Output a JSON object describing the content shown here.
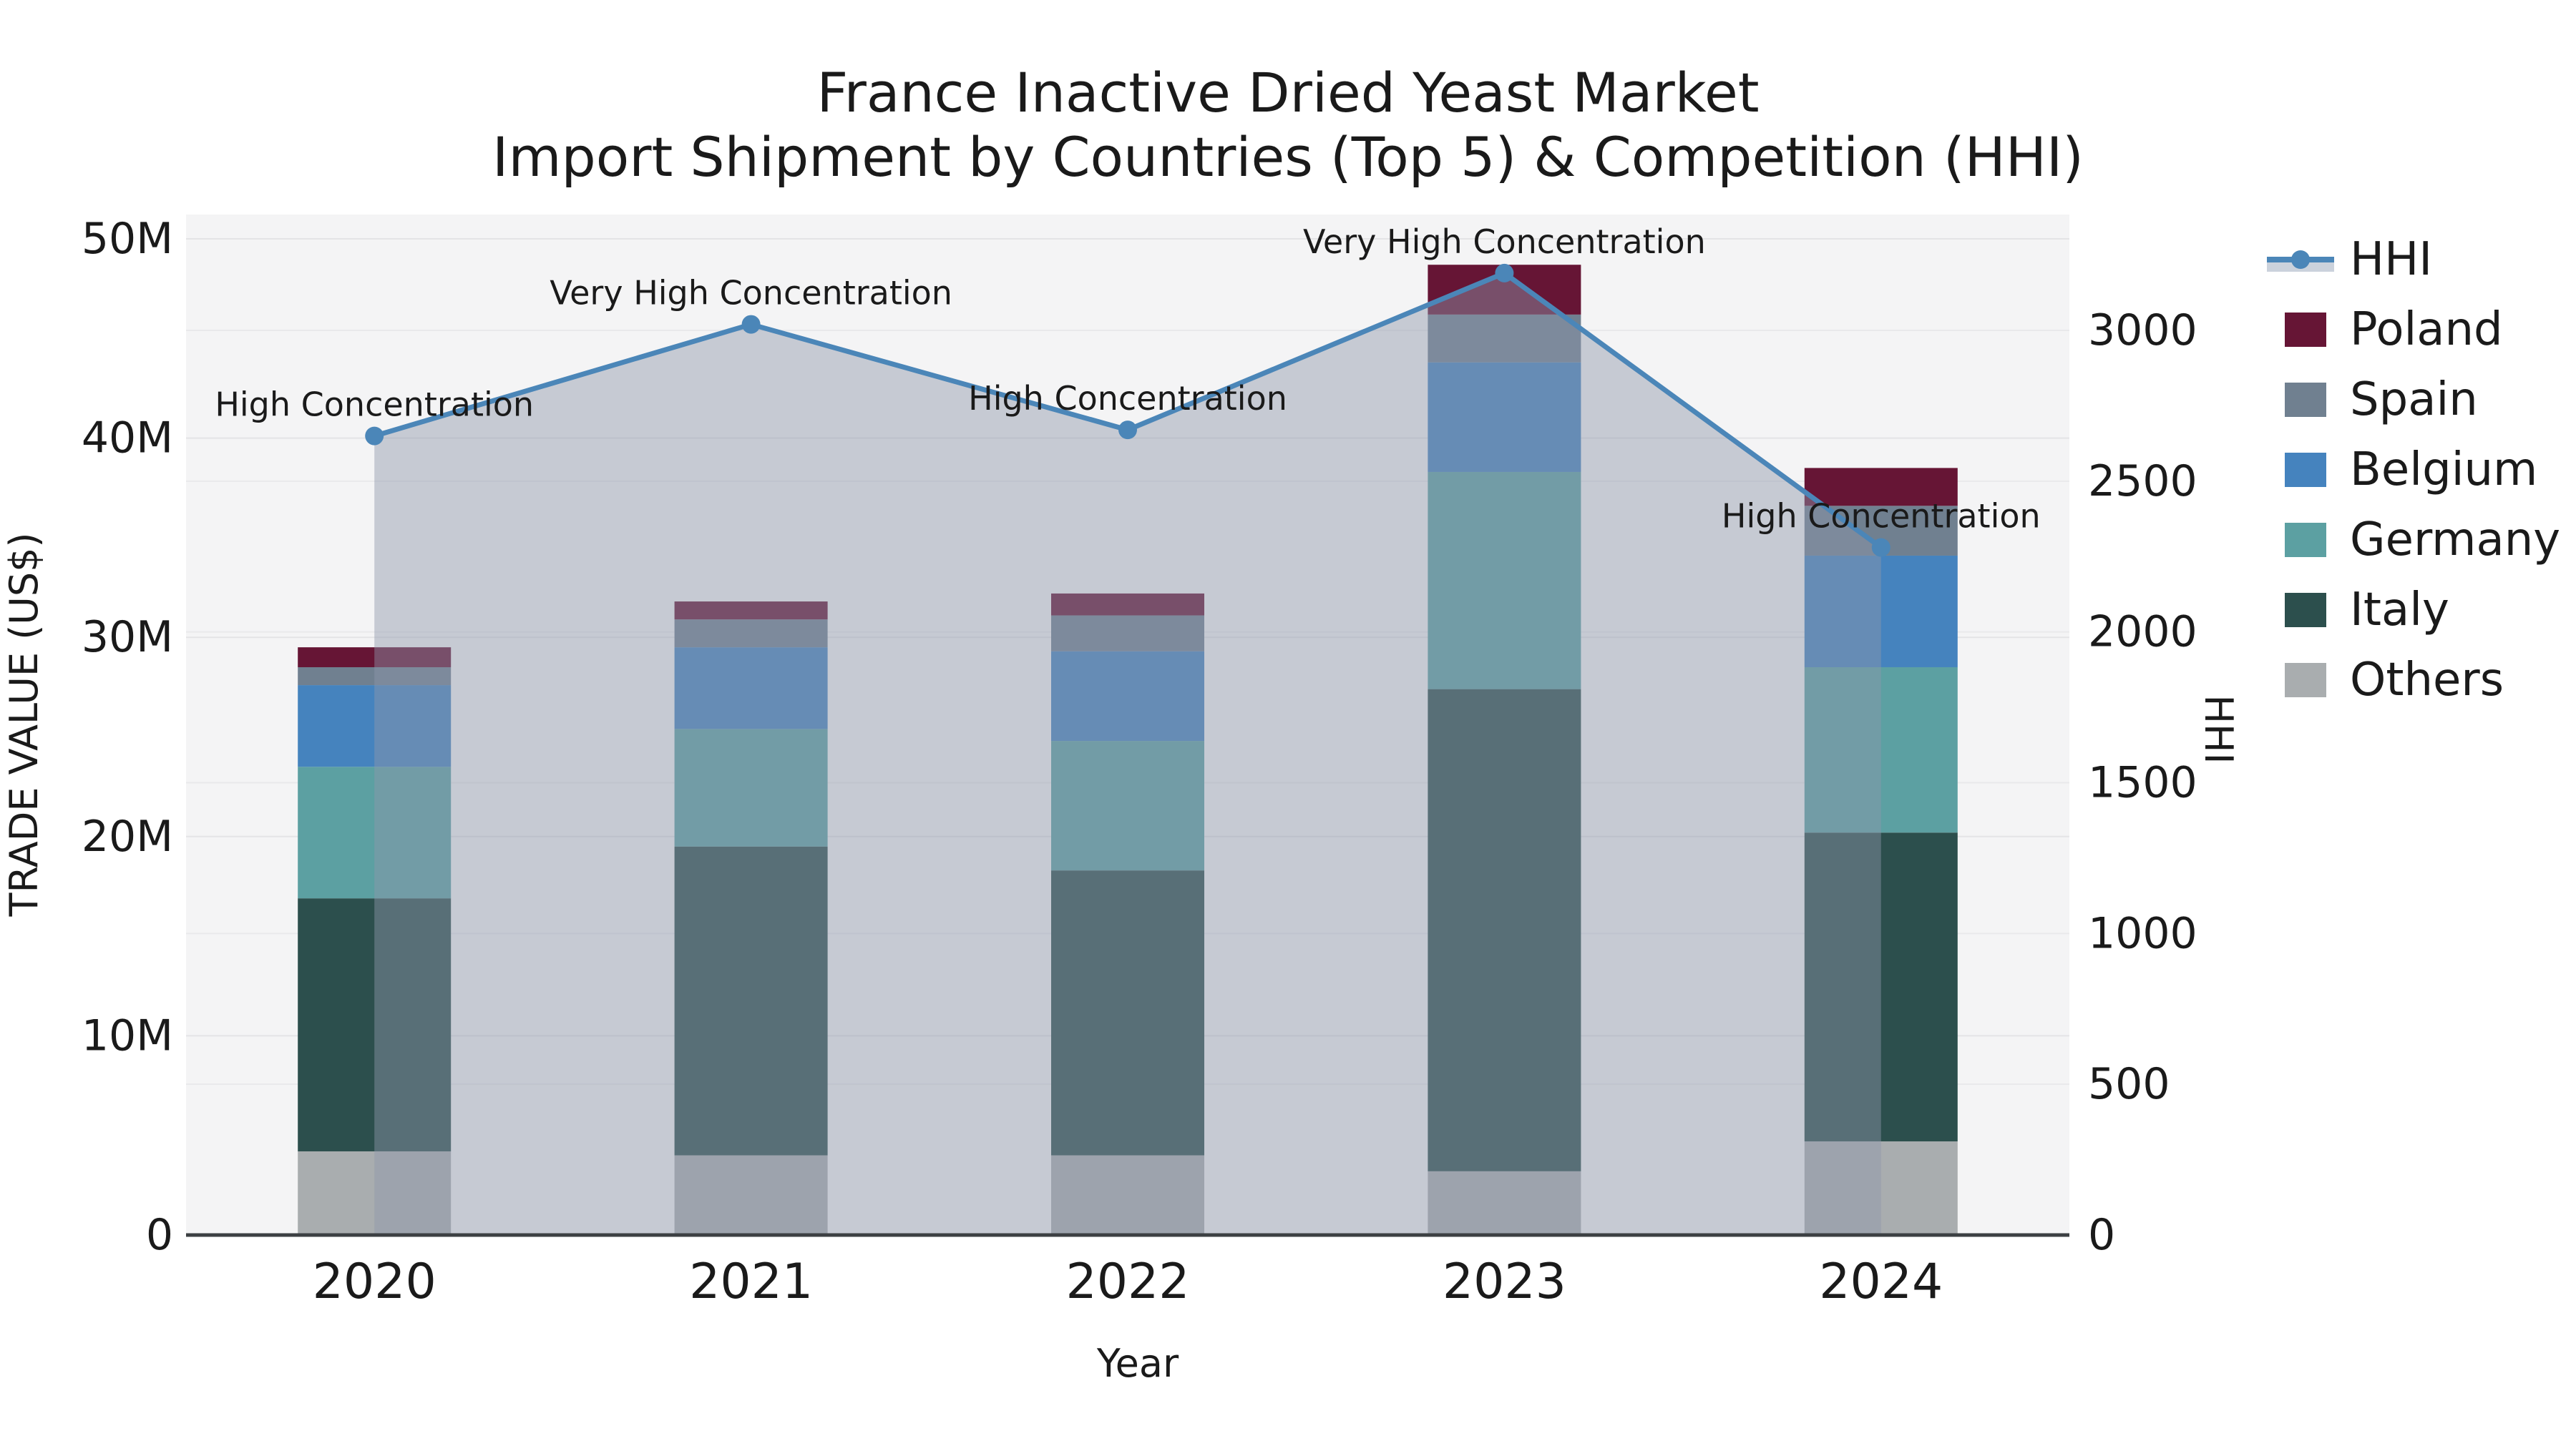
{
  "title": {
    "line1": "France Inactive Dried Yeast Market",
    "line2": "Import Shipment by Countries (Top 5) & Competition (HHI)"
  },
  "axes": {
    "x": {
      "label": "Year",
      "categories": [
        "2020",
        "2021",
        "2022",
        "2023",
        "2024"
      ]
    },
    "y_left": {
      "label": "TRADE VALUE (US$)",
      "tick_labels": [
        "0",
        "10M",
        "20M",
        "30M",
        "40M",
        "50M"
      ],
      "tick_values": [
        0,
        10,
        20,
        30,
        40,
        50
      ],
      "max_millions": 50
    },
    "y_right": {
      "label": "HHI",
      "tick_labels": [
        "0",
        "500",
        "1000",
        "1500",
        "2000",
        "2500",
        "3000"
      ],
      "tick_values": [
        0,
        500,
        1000,
        1500,
        2000,
        2500,
        3000
      ],
      "max": 3000
    }
  },
  "chart_data": {
    "type": "bar",
    "subtype": "stacked-bars-with-secondary-line",
    "unit": "US$ millions",
    "categories": [
      "2020",
      "2021",
      "2022",
      "2023",
      "2024"
    ],
    "series": [
      {
        "name": "Others",
        "color": "#A9ADAF",
        "values": [
          4.2,
          4.0,
          4.0,
          3.2,
          4.7
        ]
      },
      {
        "name": "Italy",
        "color": "#2C4F4D",
        "values": [
          12.7,
          15.5,
          14.3,
          24.2,
          15.5
        ]
      },
      {
        "name": "Germany",
        "color": "#5CA0A2",
        "values": [
          6.6,
          5.9,
          6.5,
          10.9,
          8.3
        ]
      },
      {
        "name": "Belgium",
        "color": "#4583BE",
        "values": [
          4.1,
          4.1,
          4.5,
          5.5,
          5.6
        ]
      },
      {
        "name": "Spain",
        "color": "#708090",
        "values": [
          0.9,
          1.4,
          1.8,
          2.4,
          2.5
        ]
      },
      {
        "name": "Poland",
        "color": "#661535",
        "values": [
          1.0,
          0.9,
          1.1,
          2.5,
          1.9
        ]
      }
    ],
    "bar_totals_millions": [
      29.5,
      31.8,
      32.2,
      48.7,
      38.5
    ],
    "line_series": {
      "name": "HHI",
      "axis": "right",
      "color": "#4B86B8",
      "area_fill_color": "rgba(141,151,170,0.45)",
      "values": [
        2650,
        3020,
        2670,
        3190,
        2280
      ]
    },
    "annotations": [
      {
        "category": "2020",
        "text": "High Concentration"
      },
      {
        "category": "2021",
        "text": "Very High Concentration"
      },
      {
        "category": "2022",
        "text": "High Concentration"
      },
      {
        "category": "2023",
        "text": "Very High Concentration"
      },
      {
        "category": "2024",
        "text": "High Concentration"
      }
    ],
    "ylim_left_millions": [
      0,
      50
    ],
    "ylim_right": [
      0,
      3000
    ],
    "grid": true,
    "legend_position": "right-outside",
    "plot_bg_color": "#F4F4F5",
    "figure_bg_color": "#FFFFFF"
  },
  "legend": {
    "items": [
      {
        "label": "HHI",
        "type": "line",
        "color": "#4B86B8"
      },
      {
        "label": "Poland",
        "type": "square",
        "color": "#661535"
      },
      {
        "label": "Spain",
        "type": "square",
        "color": "#708090"
      },
      {
        "label": "Belgium",
        "type": "square",
        "color": "#4583BE"
      },
      {
        "label": "Germany",
        "type": "square",
        "color": "#5CA0A2"
      },
      {
        "label": "Italy",
        "type": "square",
        "color": "#2C4F4D"
      },
      {
        "label": "Others",
        "type": "square",
        "color": "#A9ADAF"
      }
    ]
  },
  "colors": {
    "grid_left": "#e4e4e6",
    "grid_right": "#e9e9eb",
    "axis_line": "#3c4043",
    "text": "#1a1a1a"
  }
}
